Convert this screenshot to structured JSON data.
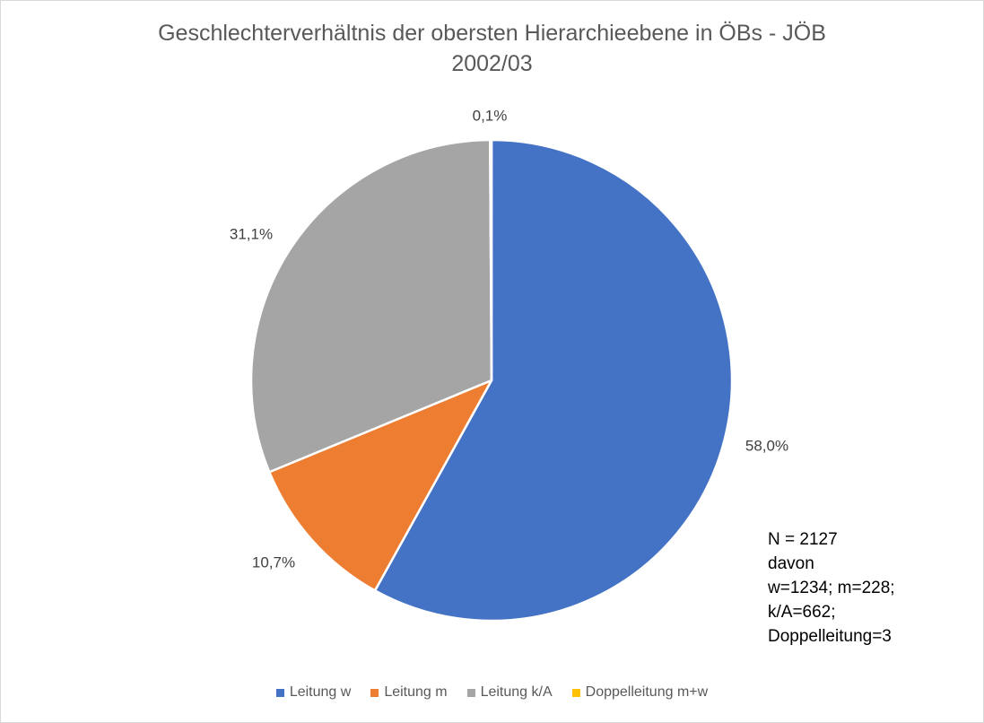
{
  "chart_data": {
    "type": "pie",
    "title": "Geschlechterverhältnis der obersten Hierarchieebene in ÖBs - JÖB 2002/03",
    "title_lines": [
      "Geschlechterverhältnis der obersten Hierarchieebene in ÖBs - JÖB",
      "2002/03"
    ],
    "categories": [
      "Leitung w",
      "Leitung m",
      "Leitung k/A",
      "Doppelleitung m+w"
    ],
    "values": [
      58.0,
      10.7,
      31.1,
      0.1
    ],
    "value_labels": [
      "58,0%",
      "10,7%",
      "31,1%",
      "0,1%"
    ],
    "colors": [
      "#4472C4",
      "#ED7D31",
      "#A5A5A5",
      "#FFC000"
    ],
    "legend_position": "bottom",
    "annotation_lines": [
      "N = 2127",
      "davon",
      "w=1234; m=228;",
      "k/A=662;",
      "Doppelleitung=3"
    ]
  }
}
